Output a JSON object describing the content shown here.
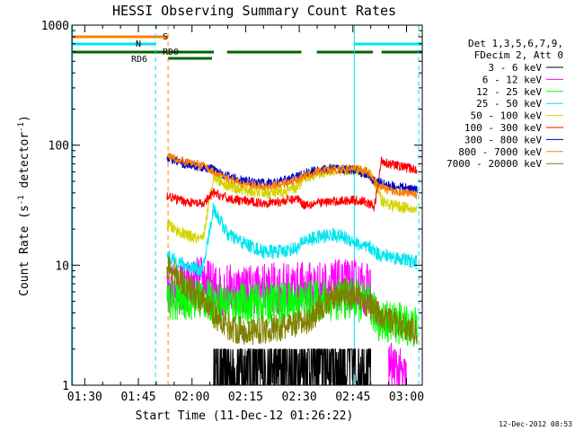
{
  "chart_data": {
    "type": "line",
    "title": "HESSI Observing Summary Count Rates",
    "xlabel": "Start Time (11-Dec-12 01:26:22)",
    "ylabel_main": "Count Rate (s",
    "ylabel_sup1": "-1",
    "ylabel_mid": " detector",
    "ylabel_sup2": "-1",
    "ylabel_end": ")",
    "yscale": "log",
    "ylim": [
      1,
      1000
    ],
    "xlim_minutes": [
      86.4,
      184.4
    ],
    "x_ticks": [
      {
        "label": "01:30",
        "min": 90
      },
      {
        "label": "01:45",
        "min": 105
      },
      {
        "label": "02:00",
        "min": 120
      },
      {
        "label": "02:15",
        "min": 135
      },
      {
        "label": "02:30",
        "min": 150
      },
      {
        "label": "02:45",
        "min": 165
      },
      {
        "label": "03:00",
        "min": 180
      }
    ],
    "y_ticks": [
      {
        "label": "1",
        "value": 1
      },
      {
        "label": "10",
        "value": 10
      },
      {
        "label": "100",
        "value": 100
      },
      {
        "label": "1000",
        "value": 1000
      }
    ],
    "legend_header": [
      "Det 1,3,5,6,7,9,",
      "FDecim 2, Att 0"
    ],
    "legend_position": "right",
    "timestamp": "12-Dec-2012 08:53",
    "flags": [
      {
        "label": "S",
        "color": "#ff7f00",
        "segments": [
          [
            86.4,
            113.3
          ]
        ]
      },
      {
        "label": "N",
        "color": "#00e5ee",
        "segments": [
          [
            86.4,
            109.8
          ],
          [
            165.4,
            184.4
          ]
        ]
      },
      {
        "label": "RD0",
        "color": "#006600",
        "segments": [
          [
            86.4,
            126.1
          ],
          [
            129.8,
            150.6
          ],
          [
            154.9,
            170.6
          ],
          [
            173.0,
            184.4
          ]
        ]
      },
      {
        "label": "RD6",
        "color": "#006600",
        "segments": [
          [
            113.3,
            125.6
          ]
        ]
      }
    ],
    "vlines": [
      {
        "min": 86.6,
        "color": "#00e5ee",
        "style": "solid"
      },
      {
        "min": 109.8,
        "color": "#00e5ee",
        "style": "dashed"
      },
      {
        "min": 113.3,
        "color": "#ff7f00",
        "style": "dashed"
      },
      {
        "min": 165.4,
        "color": "#00e5ee",
        "style": "solid"
      },
      {
        "min": 183.4,
        "color": "#00e5ee",
        "style": "dashed"
      }
    ],
    "series": [
      {
        "name": "3 - 6 keV",
        "color": "#000000",
        "x": [
          113,
          125,
          126,
          150,
          151,
          165,
          170,
          170.5,
          171.5,
          183
        ],
        "y": [
          null,
          null,
          1.2,
          1.3,
          1.5,
          1.6,
          1.6,
          null,
          null,
          null
        ]
      },
      {
        "name": "6 - 12 keV",
        "color": "#ff00ff",
        "x": [
          113,
          118,
          123,
          126,
          135,
          145,
          150,
          155,
          160,
          165,
          170,
          172,
          175,
          180,
          183
        ],
        "y": [
          6.2,
          6.5,
          7.5,
          6.3,
          6.3,
          6.4,
          6.5,
          6.6,
          6.7,
          6.9,
          6.2,
          null,
          1.5,
          1.1,
          null
        ]
      },
      {
        "name": "12 - 25 keV",
        "color": "#00ff00",
        "x": [
          113,
          118,
          123,
          126,
          135,
          145,
          150,
          155,
          160,
          165,
          170,
          172,
          175,
          180,
          183
        ],
        "y": [
          5.0,
          5.2,
          5.4,
          4.8,
          4.8,
          4.9,
          5.0,
          5.1,
          5.2,
          5.3,
          4.5,
          3.5,
          3.4,
          3.2,
          3.0
        ]
      },
      {
        "name": "25 - 50 keV",
        "color": "#00e5ee",
        "x": [
          113,
          115,
          118,
          123,
          126,
          130,
          135,
          140,
          145,
          150,
          151,
          155,
          160,
          165,
          168,
          170,
          171,
          173,
          175,
          180,
          183
        ],
        "y": [
          12,
          11,
          10,
          9,
          30,
          18,
          15,
          13,
          13,
          14,
          16,
          17,
          18,
          16,
          14,
          14,
          13,
          12,
          12,
          11,
          10.5
        ]
      },
      {
        "name": "50 - 100 keV",
        "color": "#d4d400",
        "x": [
          113,
          115,
          118,
          123,
          126,
          130,
          135,
          140,
          145,
          150,
          151,
          155,
          160,
          165,
          168,
          170,
          171,
          173,
          175,
          180,
          183
        ],
        "y": [
          22,
          20,
          18,
          16,
          55,
          46,
          42,
          40,
          40,
          45,
          54,
          58,
          62,
          62,
          60,
          55,
          50,
          35,
          32,
          30,
          28
        ]
      },
      {
        "name": "100 - 300 keV",
        "color": "#ff0000",
        "x": [
          113,
          115,
          118,
          123,
          126,
          130,
          135,
          140,
          145,
          150,
          151,
          155,
          160,
          165,
          168,
          170,
          171,
          173,
          175,
          180,
          183
        ],
        "y": [
          38,
          36,
          34,
          32,
          40,
          36,
          34,
          33,
          34,
          36,
          32,
          33,
          34,
          35,
          34,
          32,
          30,
          75,
          70,
          65,
          62
        ]
      },
      {
        "name": "300 - 800 keV",
        "color": "#0000cc",
        "x": [
          113,
          115,
          118,
          123,
          126,
          130,
          135,
          140,
          145,
          150,
          151,
          155,
          160,
          165,
          168,
          170,
          171,
          173,
          175,
          180,
          183
        ],
        "y": [
          80,
          75,
          70,
          65,
          63,
          55,
          50,
          48,
          50,
          55,
          58,
          62,
          64,
          62,
          58,
          54,
          50,
          48,
          46,
          44,
          42
        ]
      },
      {
        "name": "800 - 7000 keV",
        "color": "#ff7f00",
        "x": [
          113,
          115,
          118,
          123,
          126,
          130,
          135,
          140,
          145,
          150,
          151,
          155,
          160,
          165,
          168,
          170,
          171,
          173,
          175,
          180,
          183
        ],
        "y": [
          82,
          78,
          73,
          68,
          60,
          52,
          47,
          45,
          47,
          52,
          55,
          60,
          62,
          64,
          62,
          58,
          50,
          45,
          42,
          40,
          38
        ]
      },
      {
        "name": "7000 - 20000 keV",
        "color": "#808000",
        "x": [
          113,
          116,
          119,
          122,
          125,
          128,
          131,
          135,
          140,
          145,
          150,
          153,
          156,
          160,
          163,
          166,
          168,
          170,
          172,
          175,
          180,
          183
        ],
        "y": [
          10,
          8,
          6.5,
          5.2,
          4.2,
          3.5,
          3.0,
          2.8,
          2.9,
          3.0,
          3.2,
          3.5,
          4.5,
          5.5,
          6.0,
          5.5,
          5.0,
          4.5,
          4.0,
          3.5,
          3.0,
          2.8
        ]
      }
    ]
  }
}
